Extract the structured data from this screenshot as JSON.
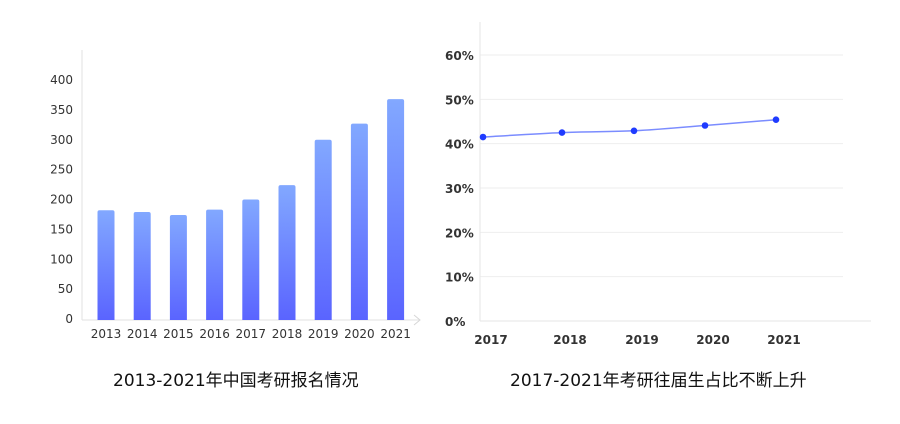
{
  "chart_data": [
    {
      "type": "bar",
      "title": "2013-2021年中国考研报名情况",
      "xlabel": "",
      "ylabel": "",
      "categories": [
        "2013",
        "2014",
        "2015",
        "2016",
        "2017",
        "2018",
        "2019",
        "2020",
        "2021"
      ],
      "values": [
        182,
        179,
        174,
        183,
        200,
        224,
        300,
        327,
        368
      ],
      "ylim": [
        0,
        400
      ],
      "yticks": [
        0,
        50,
        100,
        150,
        200,
        250,
        300,
        350,
        400
      ],
      "ytick_labels": [
        "0",
        "50",
        "100",
        "150",
        "200",
        "250",
        "300",
        "350",
        "400"
      ],
      "grid": false,
      "legend": null,
      "colors": {
        "bar_top": "#82A8FF",
        "bar_bottom": "#5A64FF",
        "axis": "#dddddd"
      }
    },
    {
      "type": "line",
      "title": "2017-2021年考研往届生占比不断上升",
      "xlabel": "",
      "ylabel": "",
      "categories": [
        "2017",
        "2018",
        "2019",
        "2020",
        "2021"
      ],
      "values": [
        41.5,
        42.5,
        42.9,
        44.1,
        45.4
      ],
      "value_unit": "%",
      "ylim": [
        0,
        60
      ],
      "yticks": [
        0,
        10,
        20,
        30,
        40,
        50,
        60
      ],
      "ytick_labels": [
        "0%",
        "10%",
        "20%",
        "30%",
        "40%",
        "50%",
        "60%"
      ],
      "grid": true,
      "legend": null,
      "colors": {
        "line": "#7B8CFF",
        "marker": "#1F3BFF",
        "grid": "#eeeeee"
      }
    }
  ]
}
